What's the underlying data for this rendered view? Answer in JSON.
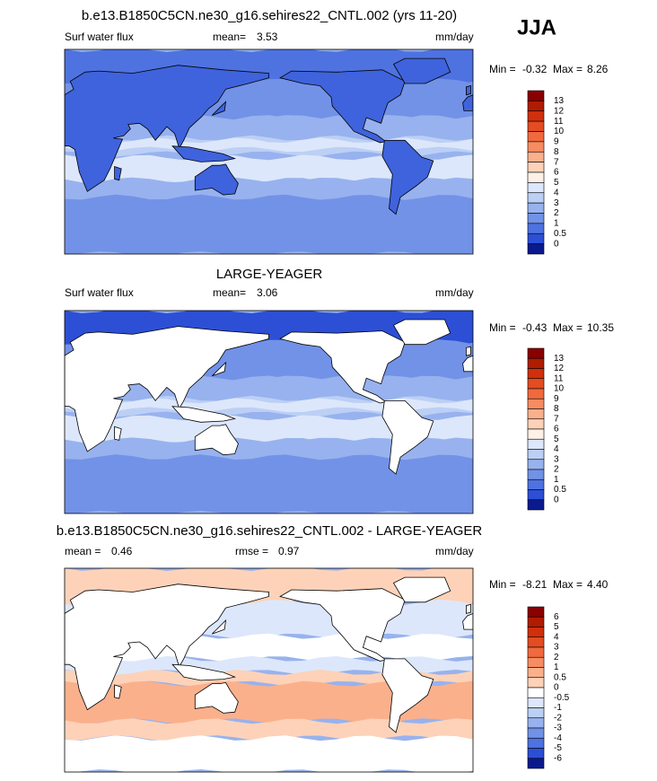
{
  "season": "JJA",
  "panels": [
    {
      "title": "b.e13.B1850C5CN.ne30_g16.sehires22_CNTL.002 (yrs 11-20)",
      "variable": "Surf water flux",
      "mean_label": "mean=",
      "mean": "3.53",
      "units": "mm/day",
      "min_label": "Min =",
      "min": "-0.32",
      "max_label": "Max =",
      "max": "8.26",
      "land_fill": "#3f63dc",
      "colorbar": {
        "labels": [
          "13",
          "12",
          "11",
          "10",
          "9",
          "8",
          "7",
          "6",
          "5",
          "4",
          "3",
          "2",
          "1",
          "0.5",
          "0"
        ],
        "colors": [
          "#8a0000",
          "#b01c00",
          "#d0300c",
          "#e44c22",
          "#f06a3e",
          "#f78c62",
          "#fbb08c",
          "#fdd2b8",
          "#fdf0e6",
          "#dde7fb",
          "#bccff5",
          "#97b2ee",
          "#7292e7",
          "#4e72e0",
          "#2c4fd6",
          "#0a1a8e"
        ]
      }
    },
    {
      "title": "LARGE-YEAGER",
      "variable": "Surf water flux",
      "mean_label": "mean=",
      "mean": "3.06",
      "units": "mm/day",
      "min_label": "Min =",
      "min": "-0.43",
      "max_label": "Max =",
      "max": "10.35",
      "land_fill": "#ffffff",
      "colorbar": {
        "labels": [
          "13",
          "12",
          "11",
          "10",
          "9",
          "8",
          "7",
          "6",
          "5",
          "4",
          "3",
          "2",
          "1",
          "0.5",
          "0"
        ],
        "colors": [
          "#8a0000",
          "#b01c00",
          "#d0300c",
          "#e44c22",
          "#f06a3e",
          "#f78c62",
          "#fbb08c",
          "#fdd2b8",
          "#fdf0e6",
          "#dde7fb",
          "#bccff5",
          "#97b2ee",
          "#7292e7",
          "#4e72e0",
          "#2c4fd6",
          "#0a1a8e"
        ]
      }
    },
    {
      "title": "b.e13.B1850C5CN.ne30_g16.sehires22_CNTL.002 - LARGE-YEAGER",
      "mean_label": "mean =",
      "mean": "0.46",
      "rmse_label": "rmse =",
      "rmse": "0.97",
      "units": "mm/day",
      "min_label": "Min =",
      "min": "-8.21",
      "max_label": "Max =",
      "max": "4.40",
      "land_fill": "#ffffff",
      "colorbar": {
        "labels": [
          "6",
          "5",
          "4",
          "3",
          "2",
          "1",
          "0.5",
          "0",
          "-0.5",
          "-1",
          "-2",
          "-3",
          "-4",
          "-5",
          "-6"
        ],
        "colors": [
          "#8a0000",
          "#b01c00",
          "#d0300c",
          "#e44c22",
          "#f06a3e",
          "#f78c62",
          "#fbb08c",
          "#fdd2b8",
          "#ffffff",
          "#dde7fb",
          "#bccff5",
          "#97b2ee",
          "#7292e7",
          "#4e72e0",
          "#2c4fd6",
          "#0a1a8e"
        ]
      }
    }
  ]
}
